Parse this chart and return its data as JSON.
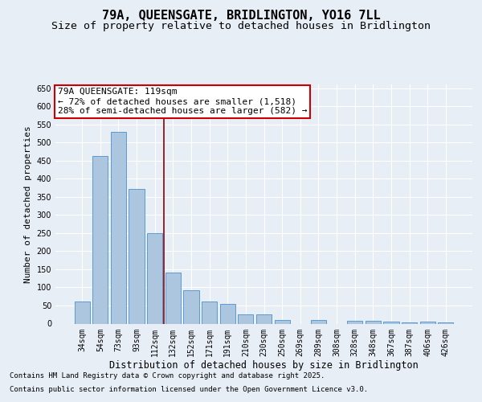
{
  "title_line1": "79A, QUEENSGATE, BRIDLINGTON, YO16 7LL",
  "title_line2": "Size of property relative to detached houses in Bridlington",
  "xlabel": "Distribution of detached houses by size in Bridlington",
  "ylabel": "Number of detached properties",
  "categories": [
    "34sqm",
    "54sqm",
    "73sqm",
    "93sqm",
    "112sqm",
    "132sqm",
    "152sqm",
    "171sqm",
    "191sqm",
    "210sqm",
    "230sqm",
    "250sqm",
    "269sqm",
    "289sqm",
    "308sqm",
    "328sqm",
    "348sqm",
    "367sqm",
    "387sqm",
    "406sqm",
    "426sqm"
  ],
  "values": [
    62,
    462,
    530,
    372,
    250,
    141,
    93,
    62,
    55,
    25,
    25,
    10,
    0,
    11,
    0,
    7,
    7,
    5,
    3,
    5,
    3
  ],
  "bar_color": "#adc6e0",
  "bar_edge_color": "#5b9bd5",
  "vline_x": 4.5,
  "vline_color": "#8b0000",
  "annotation_line1": "79A QUEENSGATE: 119sqm",
  "annotation_line2": "← 72% of detached houses are smaller (1,518)",
  "annotation_line3": "28% of semi-detached houses are larger (582) →",
  "annotation_box_color": "#cc0000",
  "annotation_box_fill": "#ffffff",
  "ylim": [
    0,
    660
  ],
  "yticks": [
    0,
    50,
    100,
    150,
    200,
    250,
    300,
    350,
    400,
    450,
    500,
    550,
    600,
    650
  ],
  "background_color": "#e8eef5",
  "plot_bg_color": "#e8eef5",
  "footer_line1": "Contains HM Land Registry data © Crown copyright and database right 2025.",
  "footer_line2": "Contains public sector information licensed under the Open Government Licence v3.0.",
  "title_fontsize": 11,
  "subtitle_fontsize": 9.5,
  "xlabel_fontsize": 8.5,
  "ylabel_fontsize": 8,
  "tick_fontsize": 7,
  "footer_fontsize": 6.5,
  "annot_fontsize": 8
}
